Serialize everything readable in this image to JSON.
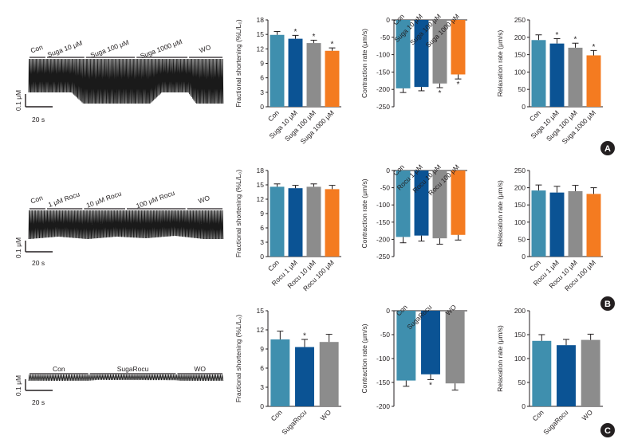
{
  "colors": {
    "con": "#3f8fae",
    "dose1": "#0b5394",
    "dose2": "#8c8c8c",
    "dose3": "#f47b20",
    "trace": "#1a1a1a",
    "axis": "#231f20"
  },
  "traces": [
    {
      "panel": "A",
      "segments": [
        "Con",
        "Suga 10 μM",
        "Suga 100 μM",
        "Suga 1000 μM",
        "WO"
      ],
      "scale_y": "0.1 μM",
      "scale_x": "20 s",
      "baseline_profile": [
        [
          0,
          1
        ],
        [
          0.22,
          1
        ],
        [
          0.28,
          0
        ],
        [
          0.62,
          0
        ],
        [
          0.68,
          1
        ],
        [
          0.82,
          1
        ],
        [
          0.86,
          0
        ],
        [
          1,
          0
        ]
      ]
    },
    {
      "panel": "B",
      "segments": [
        "Con",
        "1 μM Rocu",
        "10 μM Rocu",
        "100 μM Rocu",
        "WO"
      ],
      "scale_y": "0.1 μM",
      "scale_x": "20 s",
      "baseline_profile": [
        [
          0,
          0
        ],
        [
          0.15,
          0.3
        ],
        [
          0.3,
          0
        ],
        [
          0.45,
          0.3
        ],
        [
          0.6,
          0.1
        ],
        [
          0.75,
          0.4
        ],
        [
          0.9,
          0
        ],
        [
          1,
          0
        ]
      ]
    },
    {
      "panel": "C",
      "segments": [
        "Con",
        "SugaRocu",
        "WO"
      ],
      "scale_y": "0.1 μM",
      "scale_x": "20 s",
      "baseline_profile": [
        [
          0,
          0
        ],
        [
          0.3,
          0
        ],
        [
          0.35,
          0.15
        ],
        [
          0.75,
          0.1
        ],
        [
          0.78,
          0
        ],
        [
          1,
          0
        ]
      ]
    }
  ],
  "panel_letters": [
    "A",
    "B",
    "C"
  ],
  "chart_data": [
    {
      "type": "bar",
      "panel": "A",
      "metric": "shortening",
      "ylabel": "Fractional shortening (%L/L₀)",
      "categories": [
        "Con",
        "Suga 10 μM",
        "Suga 100 μM",
        "Suga 1000 μM"
      ],
      "values": [
        14.9,
        14.1,
        13.2,
        11.6
      ],
      "errors": [
        0.7,
        0.7,
        0.6,
        0.6
      ],
      "significant": [
        false,
        true,
        true,
        true
      ],
      "ylim": [
        0,
        18
      ],
      "yticks": [
        0,
        3,
        6,
        9,
        12,
        15,
        18
      ]
    },
    {
      "type": "bar",
      "panel": "A",
      "metric": "contraction",
      "ylabel": "Contraction rate (μm/s)",
      "categories": [
        "Con",
        "Suga 10 μM",
        "Suga 100 μM",
        "Suga 1000 μM"
      ],
      "values": [
        -197,
        -193,
        -183,
        -157
      ],
      "errors": [
        12,
        11,
        12,
        13
      ],
      "significant": [
        false,
        false,
        true,
        true
      ],
      "ylim": [
        -250,
        0
      ],
      "yticks": [
        0,
        -50,
        -100,
        -150,
        -200,
        -250
      ]
    },
    {
      "type": "bar",
      "panel": "A",
      "metric": "relaxation",
      "ylabel": "Relaxation rate (μm/s)",
      "categories": [
        "Con",
        "Suga 10 μM",
        "Suga 100 μM",
        "Suga 1000 μM"
      ],
      "values": [
        192,
        182,
        170,
        148
      ],
      "errors": [
        15,
        14,
        13,
        14
      ],
      "significant": [
        false,
        true,
        true,
        true
      ],
      "ylim": [
        0,
        250
      ],
      "yticks": [
        0,
        50,
        100,
        150,
        200,
        250
      ]
    },
    {
      "type": "bar",
      "panel": "B",
      "metric": "shortening",
      "ylabel": "Fractional shortening (%L/L₀)",
      "categories": [
        "Con",
        "Rocu 1 μM",
        "Rocu 10 μM",
        "Rocu 100 μM"
      ],
      "values": [
        14.6,
        14.3,
        14.6,
        14.1
      ],
      "errors": [
        0.6,
        0.6,
        0.6,
        0.8
      ],
      "significant": [
        false,
        false,
        false,
        false
      ],
      "ylim": [
        0,
        18
      ],
      "yticks": [
        0,
        3,
        6,
        9,
        12,
        15,
        18
      ]
    },
    {
      "type": "bar",
      "panel": "B",
      "metric": "contraction",
      "ylabel": "Contraction rate (μm/s)",
      "categories": [
        "Con",
        "Rocu 1 μM",
        "Rocu 10 μM",
        "Rocu 100 μM"
      ],
      "values": [
        -193,
        -189,
        -197,
        -187
      ],
      "errors": [
        17,
        16,
        17,
        15
      ],
      "significant": [
        false,
        false,
        false,
        false
      ],
      "ylim": [
        -250,
        0
      ],
      "yticks": [
        0,
        -50,
        -100,
        -150,
        -200,
        -250
      ]
    },
    {
      "type": "bar",
      "panel": "B",
      "metric": "relaxation",
      "ylabel": "Relaxation rate (μm/s)",
      "categories": [
        "Con",
        "Rocu 1 μM",
        "Rocu 10 μM",
        "Rocu 100 μM"
      ],
      "values": [
        192,
        186,
        190,
        182
      ],
      "errors": [
        16,
        18,
        17,
        18
      ],
      "significant": [
        false,
        false,
        false,
        false
      ],
      "ylim": [
        0,
        250
      ],
      "yticks": [
        0,
        50,
        100,
        150,
        200,
        250
      ]
    },
    {
      "type": "bar",
      "panel": "C",
      "metric": "shortening",
      "ylabel": "Fractional shortening (%L/L₀)",
      "categories": [
        "Con",
        "SugaRocu",
        "WO"
      ],
      "values": [
        10.5,
        9.3,
        10.1
      ],
      "errors": [
        1.3,
        1.2,
        1.2
      ],
      "significant": [
        false,
        true,
        false
      ],
      "ylim": [
        0,
        15
      ],
      "yticks": [
        0,
        3,
        6,
        9,
        12,
        15
      ]
    },
    {
      "type": "bar",
      "panel": "C",
      "metric": "contraction",
      "ylabel": "Contraction rate (μm/s)",
      "categories": [
        "Con",
        "SugaRocu",
        "WO"
      ],
      "values": [
        -146,
        -133,
        -152
      ],
      "errors": [
        12,
        11,
        14
      ],
      "significant": [
        false,
        true,
        false
      ],
      "ylim": [
        -200,
        0
      ],
      "yticks": [
        0,
        -50,
        -100,
        -150,
        -200
      ]
    },
    {
      "type": "bar",
      "panel": "C",
      "metric": "relaxation",
      "ylabel": "Relaxation rate (μm/s)",
      "categories": [
        "Con",
        "SugaRocu",
        "WO"
      ],
      "values": [
        137,
        128,
        139
      ],
      "errors": [
        13,
        12,
        12
      ],
      "significant": [
        false,
        false,
        false
      ],
      "ylim": [
        0,
        200
      ],
      "yticks": [
        0,
        50,
        100,
        150,
        200
      ]
    }
  ]
}
